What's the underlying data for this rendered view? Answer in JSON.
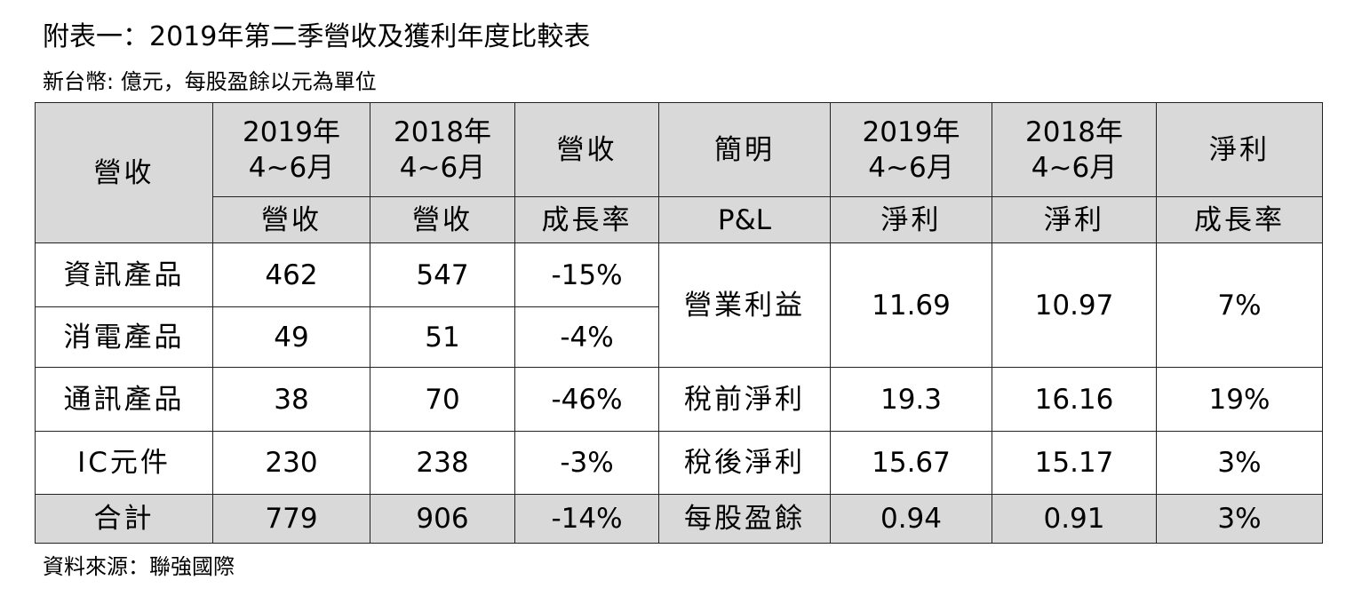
{
  "title": "附表一：2019年第二季營收及獲利年度比較表",
  "subtitle": "新台幣: 億元，每股盈餘以元為單位",
  "source": "資料來源：聯強國際",
  "header": {
    "revenue": "營收",
    "col_2019_line1": "2019年",
    "col_2019_line2": "4~6月",
    "col_2018_line1": "2018年",
    "col_2018_line2": "4~6月",
    "rev_growth_top": "營收",
    "pl_brief": "簡明",
    "np_2019_line1": "2019年",
    "np_2019_line2": "4~6月",
    "np_2018_line1": "2018年",
    "np_2018_line2": "4~6月",
    "np_growth_top": "淨利",
    "sub_rev_2019": "營收",
    "sub_rev_2018": "營收",
    "sub_rev_growth": "成長率",
    "sub_pl": "P&L",
    "sub_np_2019": "淨利",
    "sub_np_2018": "淨利",
    "sub_np_growth": "成長率"
  },
  "revenue_rows": [
    {
      "name": "資訊產品",
      "y2019": "462",
      "y2018": "547",
      "growth": "-15%"
    },
    {
      "name": "消電產品",
      "y2019": "49",
      "y2018": "51",
      "growth": "-4%"
    },
    {
      "name": "通訊產品",
      "y2019": "38",
      "y2018": "70",
      "growth": "-46%"
    },
    {
      "name": "IC元件",
      "y2019": "230",
      "y2018": "238",
      "growth": "-3%"
    }
  ],
  "revenue_total": {
    "name": "合計",
    "y2019": "779",
    "y2018": "906",
    "growth": "-14%"
  },
  "pl_rows": [
    {
      "name": "營業利益",
      "y2019": "11.69",
      "y2018": "10.97",
      "growth": "7%"
    },
    {
      "name": "稅前淨利",
      "y2019": "19.3",
      "y2018": "16.16",
      "growth": "19%"
    },
    {
      "name": "稅後淨利",
      "y2019": "15.67",
      "y2018": "15.17",
      "growth": "3%"
    },
    {
      "name": "每股盈餘",
      "y2019": "0.94",
      "y2018": "0.91",
      "growth": "3%"
    }
  ],
  "colors": {
    "header_bg": "#d9d9d9",
    "border": "#222222"
  }
}
